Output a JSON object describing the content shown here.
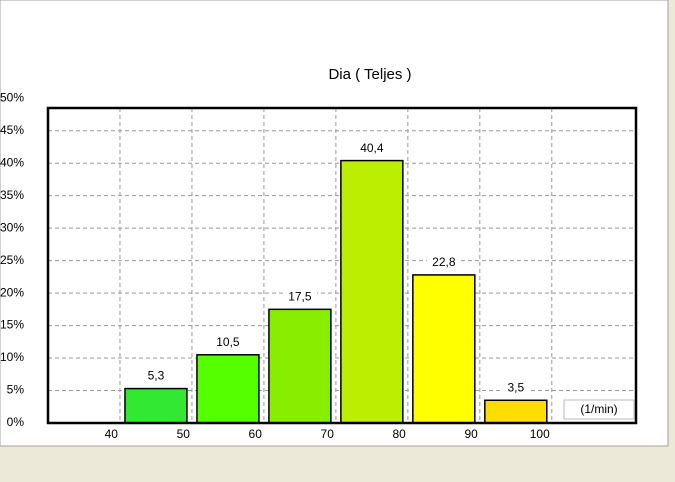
{
  "chart_data": {
    "type": "histogram",
    "title": "Dia ( Teljes )",
    "x_label": "(1/min)",
    "bins": [
      40,
      50,
      60,
      70,
      80,
      90,
      100
    ],
    "values": [
      5.3,
      10.5,
      17.5,
      40.4,
      22.8,
      3.5
    ],
    "value_labels": [
      "5,3",
      "10,5",
      "17,5",
      "40,4",
      "22,8",
      "3,5"
    ],
    "colors": [
      "#33e833",
      "#55ff00",
      "#88ee00",
      "#bbee00",
      "#ffff00",
      "#ffdd00"
    ],
    "xlim": [
      30,
      111.7
    ],
    "xticks": [
      40,
      50,
      60,
      70,
      80,
      90,
      100
    ],
    "ylim": [
      0,
      48.5
    ],
    "yticks": [
      {
        "value": 0,
        "label": "0%"
      },
      {
        "value": 5,
        "label": "5%"
      },
      {
        "value": 10,
        "label": "10%"
      },
      {
        "value": 15,
        "label": "15%"
      },
      {
        "value": 20,
        "label": "20%"
      },
      {
        "value": 25,
        "label": "25%"
      },
      {
        "value": 30,
        "label": "30%"
      },
      {
        "value": 35,
        "label": "35%"
      },
      {
        "value": 40,
        "label": "40%"
      },
      {
        "value": 45,
        "label": "45%"
      },
      {
        "value": 50,
        "label": "50%"
      }
    ],
    "grid": true
  }
}
